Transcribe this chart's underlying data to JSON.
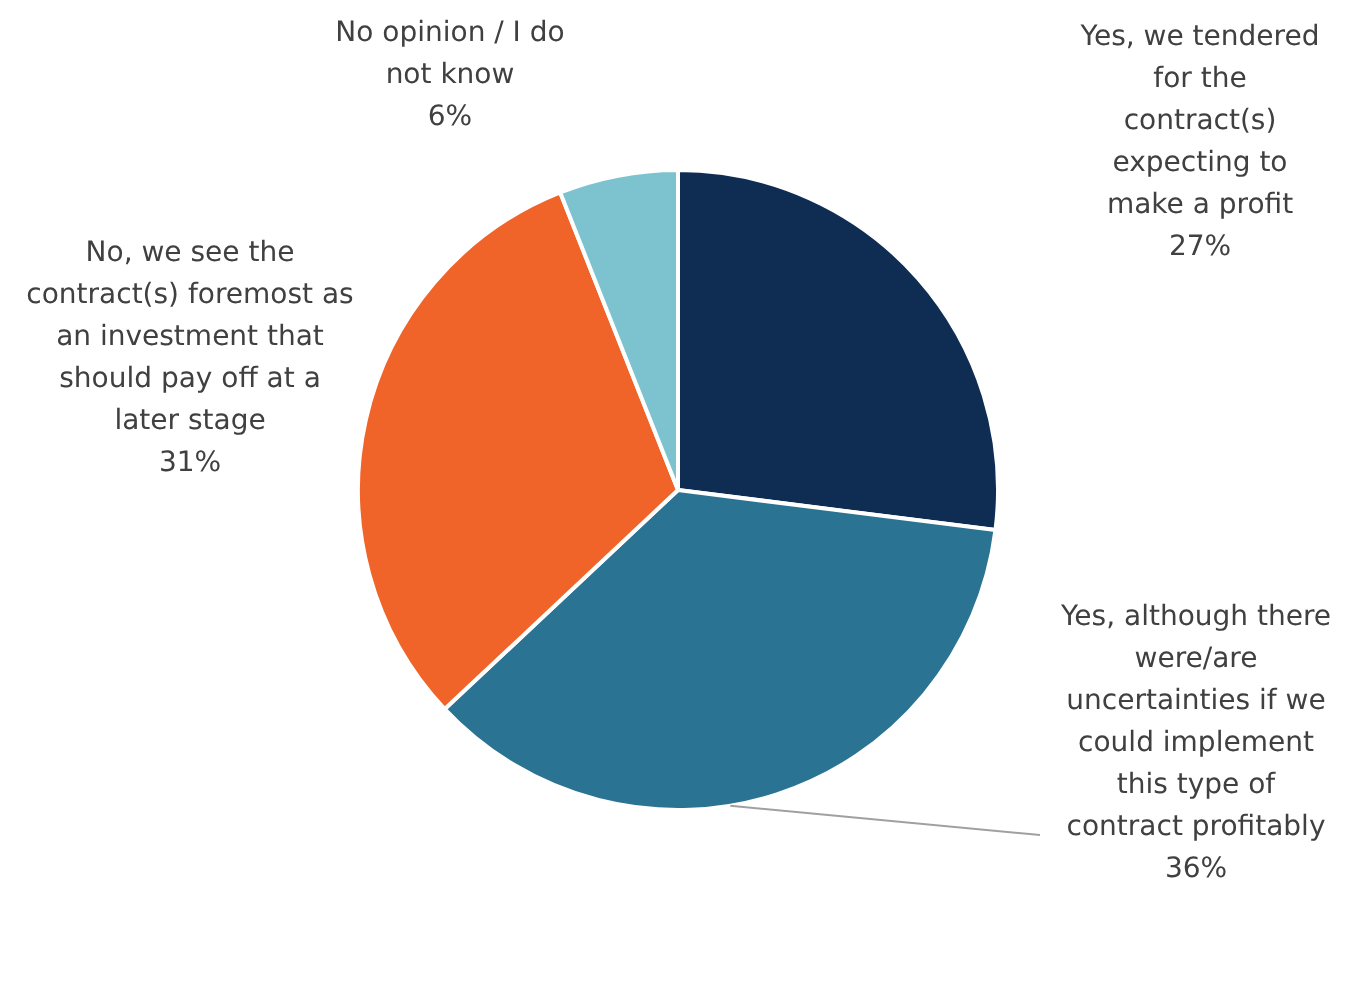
{
  "chart_data": {
    "type": "pie",
    "categories": [
      "Yes, we tendered for the contract(s) expecting to make a profit",
      "Yes, although there were/are uncertainties if we could implement this type of contract profitably",
      "No, we see the contract(s) foremost as an investment that should pay off at a later stage",
      "No opinion / I do not know"
    ],
    "values": [
      27,
      36,
      31,
      6
    ],
    "value_labels": [
      "27%",
      "36%",
      "31%",
      "6%"
    ],
    "colors": [
      "#0f2d52",
      "#2b7393",
      "#f0642a",
      "#7cc3cf"
    ],
    "legend": false
  }
}
